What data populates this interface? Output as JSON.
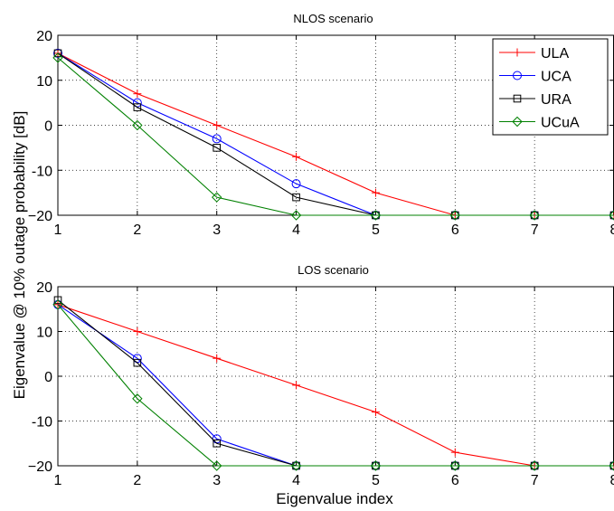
{
  "figure": {
    "ylabel": "Eigenvalue @ 10% outage probability  [dB]",
    "xlabel": "Eigenvalue index"
  },
  "chart_data": [
    {
      "type": "line",
      "title": "NLOS scenario",
      "x": [
        1,
        2,
        3,
        4,
        5,
        6,
        7,
        8
      ],
      "xlim": [
        1,
        8
      ],
      "ylim": [
        -20,
        20
      ],
      "xticks": [
        "1",
        "2",
        "3",
        "4",
        "5",
        "6",
        "7",
        "8"
      ],
      "yticks": [
        "20",
        "10",
        "0",
        "-10",
        "−20"
      ],
      "grid": true,
      "legend": "top-right",
      "series": [
        {
          "name": "ULA",
          "color": "#ff0000",
          "marker": "plus",
          "values": [
            16,
            7,
            0,
            -7,
            -15,
            -20,
            -20,
            -20
          ]
        },
        {
          "name": "UCA",
          "color": "#0000ff",
          "marker": "circle",
          "values": [
            16,
            5,
            -3,
            -13,
            -20,
            -20,
            -20,
            -20
          ]
        },
        {
          "name": "URA",
          "color": "#000000",
          "marker": "square",
          "values": [
            16,
            4,
            -5,
            -16,
            -20,
            -20,
            -20,
            -20
          ]
        },
        {
          "name": "UCuA",
          "color": "#008000",
          "marker": "diamond",
          "values": [
            15,
            0,
            -16,
            -20,
            -20,
            -20,
            -20,
            -20
          ]
        }
      ]
    },
    {
      "type": "line",
      "title": "LOS scenario",
      "x": [
        1,
        2,
        3,
        4,
        5,
        6,
        7,
        8
      ],
      "xlim": [
        1,
        8
      ],
      "ylim": [
        -20,
        20
      ],
      "xticks": [
        "1",
        "2",
        "3",
        "4",
        "5",
        "6",
        "7",
        "8"
      ],
      "yticks": [
        "20",
        "10",
        "0",
        "-10",
        "−20"
      ],
      "grid": true,
      "series": [
        {
          "name": "ULA",
          "color": "#ff0000",
          "marker": "plus",
          "values": [
            16,
            10,
            4,
            -2,
            -8,
            -17,
            -20,
            -20
          ]
        },
        {
          "name": "UCA",
          "color": "#0000ff",
          "marker": "circle",
          "values": [
            16,
            4,
            -14,
            -20,
            -20,
            -20,
            -20,
            -20
          ]
        },
        {
          "name": "URA",
          "color": "#000000",
          "marker": "square",
          "values": [
            17,
            3,
            -15,
            -20,
            -20,
            -20,
            -20,
            -20
          ]
        },
        {
          "name": "UCuA",
          "color": "#008000",
          "marker": "diamond",
          "values": [
            16,
            -5,
            -20,
            -20,
            -20,
            -20,
            -20,
            -20
          ]
        }
      ]
    }
  ]
}
